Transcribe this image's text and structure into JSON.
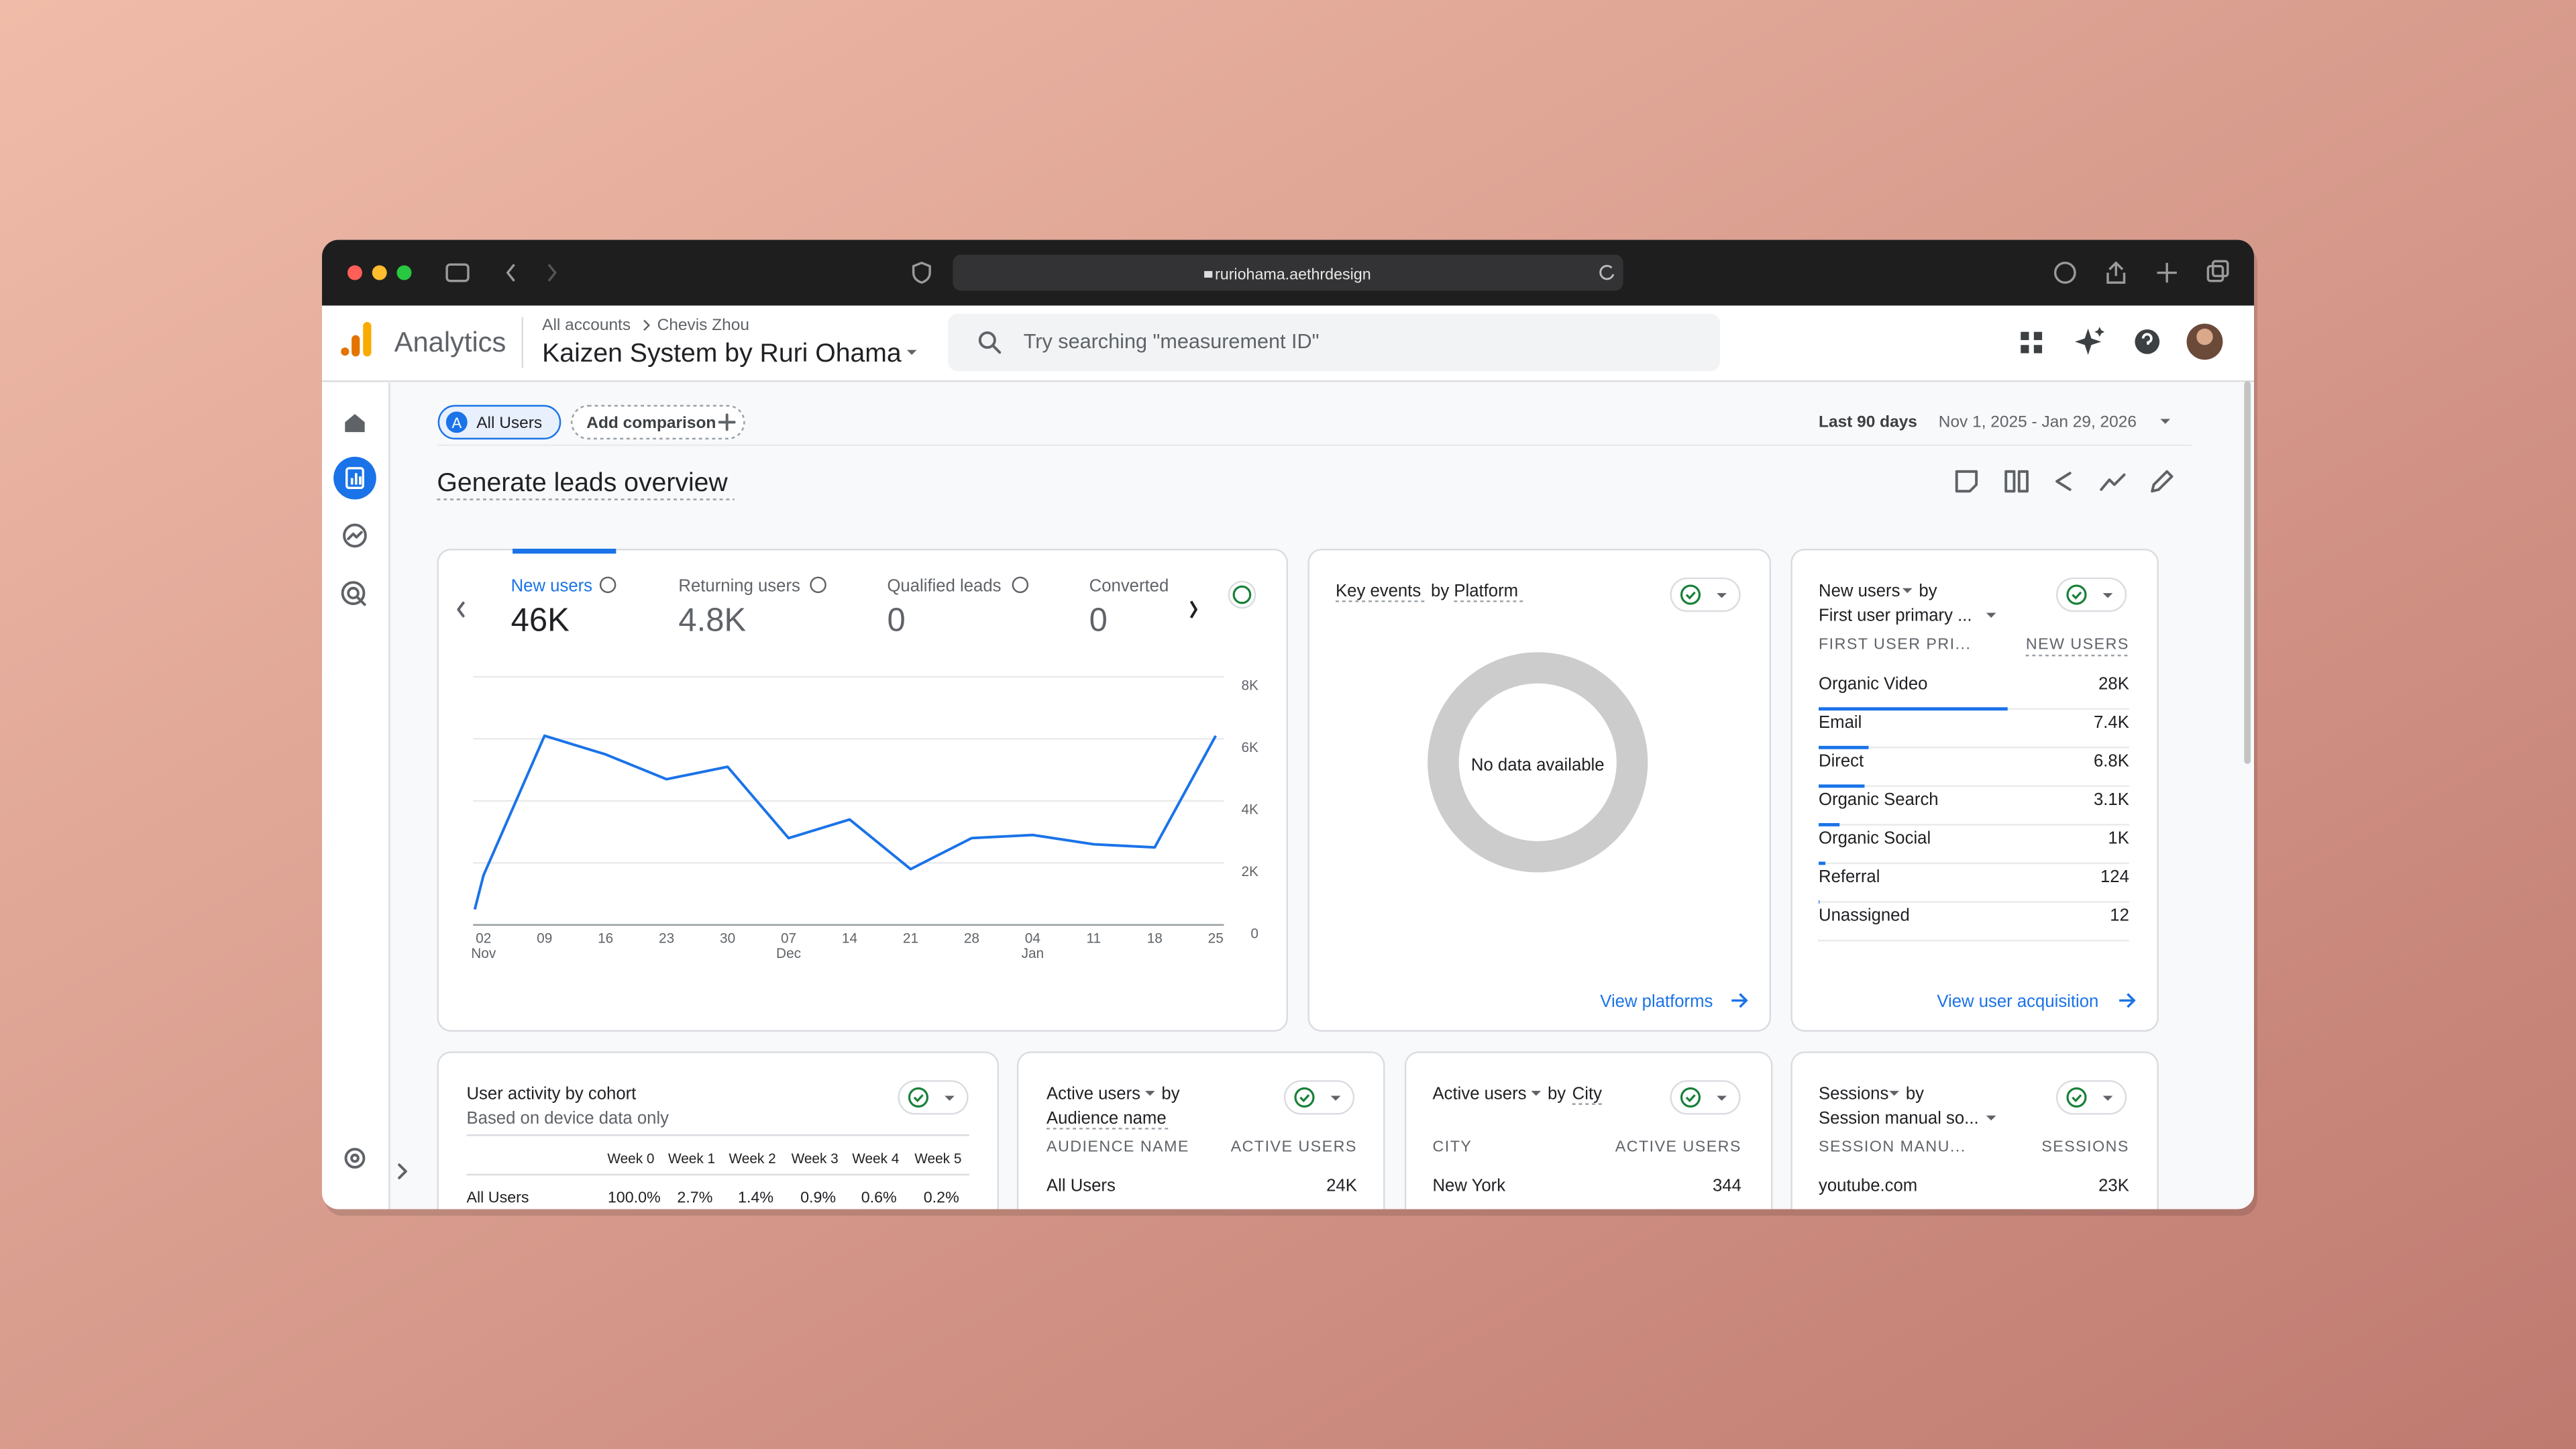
{
  "browser": {
    "url": "ruriohama.aethrdesign"
  },
  "header": {
    "product": "Analytics",
    "breadcrumb": [
      "All accounts",
      "Chevis Zhou"
    ],
    "property": "Kaizen System by Ruri Ohama",
    "search_placeholder": "Try searching \"measurement ID\""
  },
  "toolbar": {
    "segment_badge": "A",
    "segment": "All Users",
    "add_comparison": "Add comparison",
    "date_label": "Last 90 days",
    "date_range": "Nov 1, 2025 - Jan 29, 2026"
  },
  "page_title": "Generate leads overview",
  "metrics": [
    {
      "label": "New users",
      "value": "46K"
    },
    {
      "label": "Returning users",
      "value": "4.8K"
    },
    {
      "label": "Qualified leads",
      "value": "0"
    },
    {
      "label": "Converted",
      "value": "0"
    }
  ],
  "chart_data": {
    "type": "line",
    "color": "#1a73e8",
    "x": [
      0,
      1,
      8,
      15,
      22,
      29,
      36,
      43,
      50,
      57,
      64,
      71,
      78,
      85
    ],
    "values": [
      500,
      1600,
      6100,
      5500,
      4700,
      5100,
      2800,
      3400,
      1800,
      2800,
      2900,
      2600,
      2500,
      6100
    ],
    "xlim": [
      0,
      85
    ],
    "xticks": [
      {
        "value": 1,
        "label": "02"
      },
      {
        "value": 8,
        "label": "09"
      },
      {
        "value": 15,
        "label": "16"
      },
      {
        "value": 22,
        "label": "23"
      },
      {
        "value": 29,
        "label": "30"
      },
      {
        "value": 36,
        "label": "07"
      },
      {
        "value": 43,
        "label": "14"
      },
      {
        "value": 50,
        "label": "21"
      },
      {
        "value": 57,
        "label": "28"
      },
      {
        "value": 64,
        "label": "04"
      },
      {
        "value": 71,
        "label": "11"
      },
      {
        "value": 78,
        "label": "18"
      },
      {
        "value": 85,
        "label": "25"
      }
    ],
    "xtick_sublabels": [
      {
        "value": 1,
        "label": "Nov"
      },
      {
        "value": 36,
        "label": "Dec"
      },
      {
        "value": 64,
        "label": "Jan"
      }
    ],
    "ylim": [
      0,
      8000
    ],
    "yticks": [
      0,
      {
        "value": 2000,
        "label": "2K"
      },
      {
        "value": 4000,
        "label": "4K"
      },
      {
        "value": 6000,
        "label": "6K"
      },
      {
        "value": 8000,
        "label": "8K"
      }
    ],
    "grid": true
  },
  "key_events_card": {
    "title": [
      "Key events",
      "by",
      "Platform"
    ],
    "empty": "No data available",
    "link": "View platforms"
  },
  "new_users_card": {
    "title": [
      "New users",
      "by",
      "First user primary ..."
    ],
    "columns": [
      "FIRST USER PRI...",
      "NEW USERS"
    ],
    "xlim": [
      0,
      46000
    ],
    "rows": [
      {
        "name": "Organic Video",
        "value": 28000,
        "label": "28K"
      },
      {
        "name": "Email",
        "value": 7400,
        "label": "7.4K"
      },
      {
        "name": "Direct",
        "value": 6800,
        "label": "6.8K"
      },
      {
        "name": "Organic Search",
        "value": 3100,
        "label": "3.1K"
      },
      {
        "name": "Organic Social",
        "value": 1000,
        "label": "1K"
      },
      {
        "name": "Referral",
        "value": 124,
        "label": "124"
      },
      {
        "name": "Unassigned",
        "value": 12,
        "label": "12"
      }
    ],
    "link": "View user acquisition"
  },
  "cohort_card": {
    "title": "User activity by cohort",
    "subtitle": "Based on device data only",
    "columns": [
      "Week 0",
      "Week 1",
      "Week 2",
      "Week 3",
      "Week 4",
      "Week 5"
    ],
    "rows": [
      {
        "name": "All Users",
        "cells": [
          "100.0%",
          "2.7%",
          "1.4%",
          "0.9%",
          "0.6%",
          "0.2%"
        ]
      }
    ]
  },
  "audience_card": {
    "title": [
      "Active users",
      "by",
      "Audience name"
    ],
    "columns": [
      "AUDIENCE NAME",
      "ACTIVE USERS"
    ],
    "xlim": [
      0,
      24000
    ],
    "rows": [
      {
        "name": "All Users",
        "value": 24000,
        "label": "24K"
      }
    ]
  },
  "city_card": {
    "title": [
      "Active users",
      "by",
      "City"
    ],
    "columns": [
      "CITY",
      "ACTIVE USERS"
    ],
    "xlim": [
      0,
      24000
    ],
    "rows": [
      {
        "name": "New York",
        "value": 344,
        "label": "344"
      }
    ]
  },
  "sessions_card": {
    "title": [
      "Sessions",
      "by",
      "Session manual so..."
    ],
    "columns": [
      "SESSION MANU...",
      "SESSIONS"
    ],
    "xlim": [
      0,
      33000
    ],
    "rows": [
      {
        "name": "youtube.com",
        "value": 23000,
        "label": "23K"
      }
    ]
  }
}
